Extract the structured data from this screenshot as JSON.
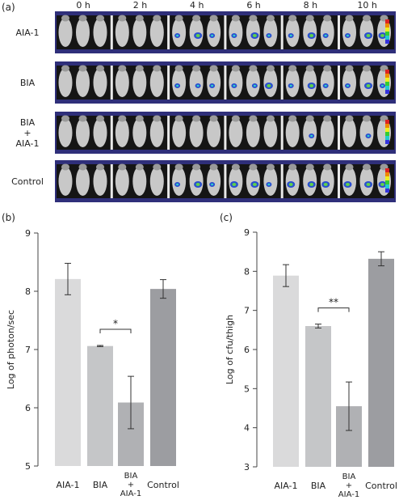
{
  "panel_a": {
    "label": "(a)",
    "times": [
      "0 h",
      "2 h",
      "4 h",
      "6 h",
      "8 h",
      "10 h"
    ],
    "rows": [
      {
        "name": "AIA-1",
        "lines": [
          "AIA-1"
        ]
      },
      {
        "name": "BIA",
        "lines": [
          "BIA"
        ]
      },
      {
        "name": "BIA + AIA-1",
        "lines": [
          "BIA",
          "+",
          "AIA-1"
        ]
      },
      {
        "name": "Control",
        "lines": [
          "Control"
        ]
      }
    ],
    "colors": {
      "frame": "#2f2f7a",
      "background": "#151515",
      "mouse": "#c8c8c8",
      "signal_blue": "#2a4fd0",
      "signal_cyan": "#2fd0c8",
      "signal_green": "#5fd04a"
    }
  },
  "chart_data": [
    {
      "type": "bar",
      "panel_label": "(b)",
      "categories": [
        "AIA-1",
        "BIA",
        "BIA + AIA-1",
        "Control"
      ],
      "category_lines": [
        [
          "AIA-1"
        ],
        [
          "BIA"
        ],
        [
          "BIA",
          "+",
          "AIA-1"
        ],
        [
          "Control"
        ]
      ],
      "values": [
        8.21,
        7.06,
        6.09,
        8.04
      ],
      "errors": [
        0.27,
        0.01,
        0.45,
        0.16
      ],
      "ylabel": "Log of photon/sec",
      "ylim": [
        5,
        9
      ],
      "yticks": [
        5,
        6,
        7,
        8,
        9
      ],
      "significance": {
        "between": [
          1,
          2
        ],
        "label": "*"
      },
      "bar_colors": [
        "#dadadb",
        "#c5c6c8",
        "#b0b1b4",
        "#9c9da1"
      ]
    },
    {
      "type": "bar",
      "panel_label": "(c)",
      "categories": [
        "AIA-1",
        "BIA",
        "BIA + AIA-1",
        "Control"
      ],
      "category_lines": [
        [
          "AIA-1"
        ],
        [
          "BIA"
        ],
        [
          "BIA",
          "+",
          "AIA-1"
        ],
        [
          "Control"
        ]
      ],
      "values": [
        7.89,
        6.6,
        4.55,
        8.32
      ],
      "errors": [
        0.28,
        0.05,
        0.62,
        0.18
      ],
      "ylabel": "Log of cfu/thigh",
      "ylim": [
        3,
        9
      ],
      "yticks": [
        3,
        4,
        5,
        6,
        7,
        8,
        9
      ],
      "significance": {
        "between": [
          1,
          2
        ],
        "label": "**"
      },
      "bar_colors": [
        "#dadadb",
        "#c5c6c8",
        "#b0b1b4",
        "#9c9da1"
      ]
    }
  ]
}
